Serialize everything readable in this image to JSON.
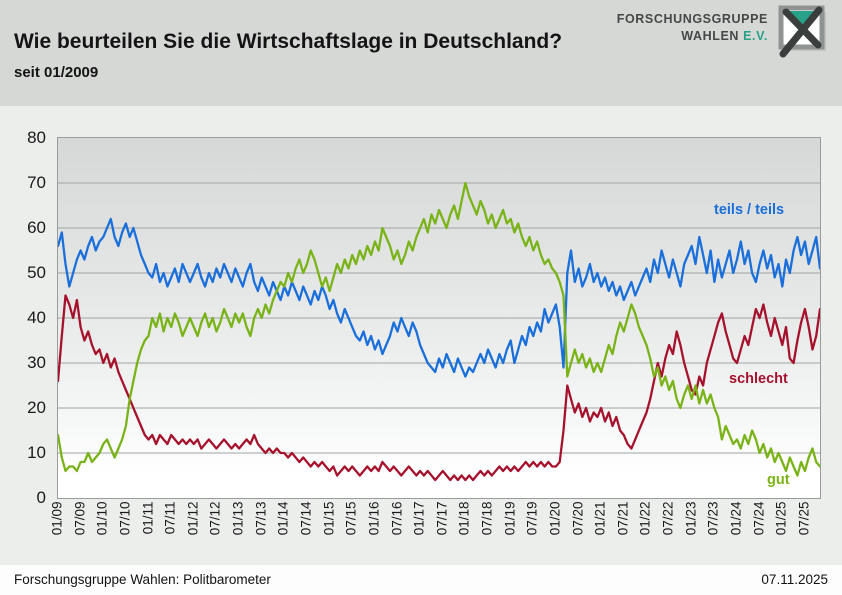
{
  "header": {
    "title": "Wie beurteilen Sie die Wirtschaftslage in Deutschland?",
    "subtitle": "seit 01/2009",
    "brand_line1": "FORSCHUNGSGRUPPE",
    "brand_line2": "WAHLEN",
    "brand_suffix": "E.V."
  },
  "footer": {
    "source": "Forschungsgruppe Wahlen: Politbarometer",
    "date": "07.11.2025"
  },
  "colors": {
    "brand_teal": "#29a187",
    "grid": "#9fa3a1",
    "plot_border": "#999c9a"
  },
  "chart_data": {
    "type": "line",
    "title": "Wie beurteilen Sie die Wirtschaftslage in Deutschland?",
    "subtitle": "seit 01/2009",
    "x_start": "01/2009",
    "x_end": "11/2025",
    "x_interval": "monthly",
    "x_tick_labels": [
      "01/09",
      "07/09",
      "01/10",
      "07/10",
      "01/11",
      "07/11",
      "01/12",
      "07/12",
      "01/13",
      "07/13",
      "01/14",
      "07/14",
      "01/15",
      "07/15",
      "01/16",
      "07/16",
      "01/17",
      "07/17",
      "01/18",
      "07/18",
      "01/19",
      "07/19",
      "01/20",
      "07/20",
      "01/21",
      "07/21",
      "01/22",
      "07/22",
      "01/23",
      "07/23",
      "01/24",
      "07/24",
      "01/25",
      "07/25"
    ],
    "ylim": [
      0,
      80
    ],
    "y_ticks": [
      0,
      10,
      20,
      30,
      40,
      50,
      60,
      70,
      80
    ],
    "grid": "horizontal",
    "legend_position": "inline-labels",
    "series": [
      {
        "name": "teils / teils",
        "color": "#1a6fdb",
        "values": [
          56,
          59,
          52,
          47,
          50,
          53,
          55,
          53,
          56,
          58,
          55,
          57,
          58,
          60,
          62,
          58,
          56,
          59,
          61,
          58,
          60,
          57,
          54,
          52,
          50,
          49,
          52,
          48,
          50,
          47,
          49,
          51,
          48,
          52,
          50,
          48,
          50,
          52,
          49,
          47,
          50,
          48,
          51,
          49,
          52,
          50,
          48,
          51,
          49,
          47,
          50,
          52,
          48,
          46,
          49,
          47,
          45,
          48,
          46,
          44,
          47,
          45,
          48,
          46,
          44,
          47,
          45,
          43,
          46,
          44,
          47,
          45,
          42,
          44,
          41,
          39,
          42,
          40,
          38,
          36,
          35,
          37,
          34,
          36,
          33,
          35,
          32,
          34,
          36,
          39,
          37,
          40,
          38,
          36,
          39,
          37,
          34,
          32,
          30,
          29,
          28,
          31,
          29,
          32,
          30,
          28,
          31,
          29,
          27,
          29,
          28,
          30,
          32,
          30,
          33,
          31,
          29,
          32,
          30,
          33,
          35,
          30,
          33,
          36,
          34,
          38,
          36,
          39,
          37,
          42,
          39,
          41,
          43,
          38,
          29,
          50,
          55,
          48,
          51,
          47,
          49,
          52,
          48,
          50,
          47,
          49,
          46,
          48,
          45,
          47,
          44,
          46,
          48,
          45,
          47,
          49,
          51,
          48,
          53,
          50,
          55,
          52,
          49,
          53,
          50,
          47,
          52,
          54,
          56,
          52,
          58,
          54,
          50,
          55,
          48,
          53,
          49,
          52,
          55,
          50,
          53,
          57,
          52,
          55,
          50,
          48,
          52,
          55,
          51,
          54,
          49,
          52,
          47,
          53,
          50,
          55,
          58,
          54,
          57,
          52,
          55,
          58,
          51
        ]
      },
      {
        "name": "schlecht",
        "color": "#a6122d",
        "values": [
          26,
          36,
          45,
          43,
          40,
          44,
          38,
          35,
          37,
          34,
          32,
          33,
          30,
          32,
          29,
          31,
          28,
          26,
          24,
          22,
          20,
          18,
          16,
          14,
          13,
          14,
          12,
          14,
          13,
          12,
          14,
          13,
          12,
          13,
          12,
          13,
          12,
          13,
          11,
          12,
          13,
          12,
          11,
          12,
          13,
          12,
          11,
          12,
          11,
          12,
          13,
          12,
          14,
          12,
          11,
          10,
          11,
          10,
          11,
          10,
          10,
          9,
          10,
          9,
          8,
          9,
          8,
          7,
          8,
          7,
          8,
          7,
          6,
          7,
          5,
          6,
          7,
          6,
          7,
          6,
          5,
          6,
          7,
          6,
          7,
          6,
          8,
          7,
          6,
          7,
          6,
          5,
          6,
          7,
          6,
          5,
          6,
          5,
          6,
          5,
          4,
          5,
          6,
          5,
          4,
          5,
          4,
          5,
          4,
          5,
          4,
          5,
          6,
          5,
          6,
          5,
          6,
          7,
          6,
          7,
          6,
          7,
          6,
          7,
          8,
          7,
          8,
          7,
          8,
          7,
          8,
          7,
          7,
          8,
          15,
          25,
          22,
          19,
          21,
          18,
          20,
          17,
          19,
          18,
          20,
          17,
          19,
          16,
          18,
          15,
          14,
          12,
          11,
          13,
          15,
          17,
          19,
          22,
          26,
          30,
          27,
          31,
          34,
          32,
          37,
          34,
          30,
          27,
          24,
          23,
          27,
          25,
          30,
          33,
          36,
          39,
          41,
          37,
          34,
          31,
          30,
          33,
          36,
          34,
          38,
          42,
          40,
          43,
          39,
          36,
          40,
          37,
          34,
          38,
          31,
          30,
          35,
          39,
          42,
          38,
          33,
          36,
          42
        ]
      },
      {
        "name": "gut",
        "color": "#7ab317",
        "values": [
          14,
          9,
          6,
          7,
          7,
          6,
          8,
          8,
          10,
          8,
          9,
          10,
          12,
          13,
          11,
          9,
          11,
          13,
          16,
          22,
          26,
          30,
          33,
          35,
          36,
          40,
          38,
          41,
          37,
          40,
          38,
          41,
          39,
          36,
          38,
          40,
          38,
          36,
          39,
          41,
          38,
          40,
          37,
          39,
          42,
          40,
          38,
          41,
          39,
          41,
          38,
          36,
          40,
          42,
          40,
          43,
          41,
          44,
          46,
          48,
          47,
          50,
          48,
          51,
          53,
          50,
          52,
          55,
          53,
          50,
          47,
          49,
          46,
          49,
          52,
          50,
          53,
          51,
          54,
          52,
          55,
          53,
          56,
          54,
          57,
          55,
          60,
          58,
          56,
          53,
          55,
          52,
          54,
          57,
          55,
          58,
          60,
          62,
          59,
          63,
          61,
          64,
          62,
          60,
          63,
          65,
          62,
          66,
          70,
          67,
          65,
          63,
          66,
          64,
          61,
          63,
          60,
          62,
          64,
          61,
          62,
          59,
          61,
          58,
          56,
          58,
          55,
          57,
          54,
          52,
          53,
          51,
          50,
          48,
          45,
          27,
          30,
          33,
          30,
          32,
          29,
          31,
          28,
          30,
          28,
          31,
          34,
          32,
          36,
          39,
          37,
          40,
          43,
          41,
          38,
          36,
          34,
          31,
          27,
          29,
          25,
          27,
          24,
          26,
          22,
          20,
          23,
          25,
          22,
          25,
          21,
          24,
          21,
          23,
          20,
          18,
          13,
          16,
          14,
          12,
          13,
          11,
          14,
          12,
          15,
          13,
          10,
          12,
          9,
          11,
          8,
          10,
          8,
          6,
          9,
          7,
          5,
          8,
          6,
          9,
          11,
          8,
          7
        ]
      }
    ]
  }
}
